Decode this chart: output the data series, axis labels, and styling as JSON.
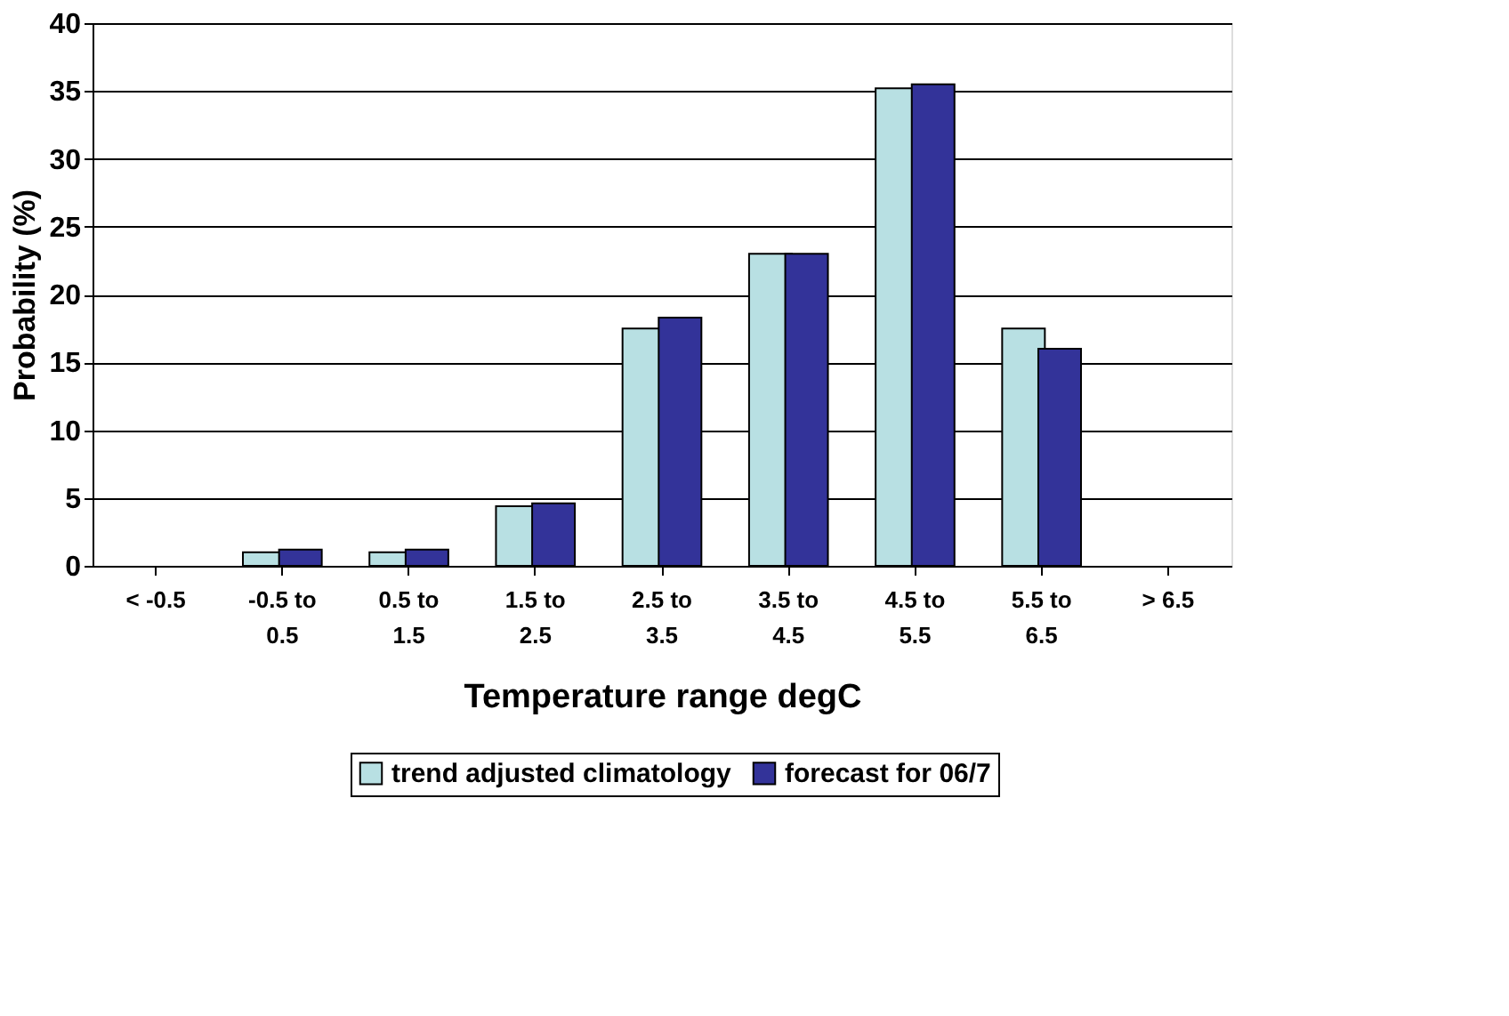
{
  "chart_data": {
    "type": "bar",
    "xlabel": "Temperature range degC",
    "ylabel": "Probability (%)",
    "categories": [
      "< -0.5",
      "-0.5 to 0.5",
      "0.5 to 1.5",
      "1.5 to 2.5",
      "2.5 to 3.5",
      "3.5 to 4.5",
      "4.5 to 5.5",
      "5.5 to 6.5",
      "> 6.5"
    ],
    "series": [
      {
        "name": "trend adjusted climatology",
        "color": "#b8e0e3",
        "values": [
          null,
          1.0,
          1.0,
          4.4,
          17.5,
          23.0,
          35.2,
          17.5,
          null
        ]
      },
      {
        "name": "forecast for 06/7",
        "color": "#333399",
        "values": [
          null,
          1.2,
          1.2,
          4.6,
          18.3,
          23.0,
          35.5,
          16.0,
          null
        ]
      }
    ],
    "ylim": [
      0,
      40
    ],
    "yticks": [
      0,
      5,
      10,
      15,
      20,
      25,
      30,
      35,
      40
    ],
    "grid": "y",
    "legend": "bottom"
  }
}
